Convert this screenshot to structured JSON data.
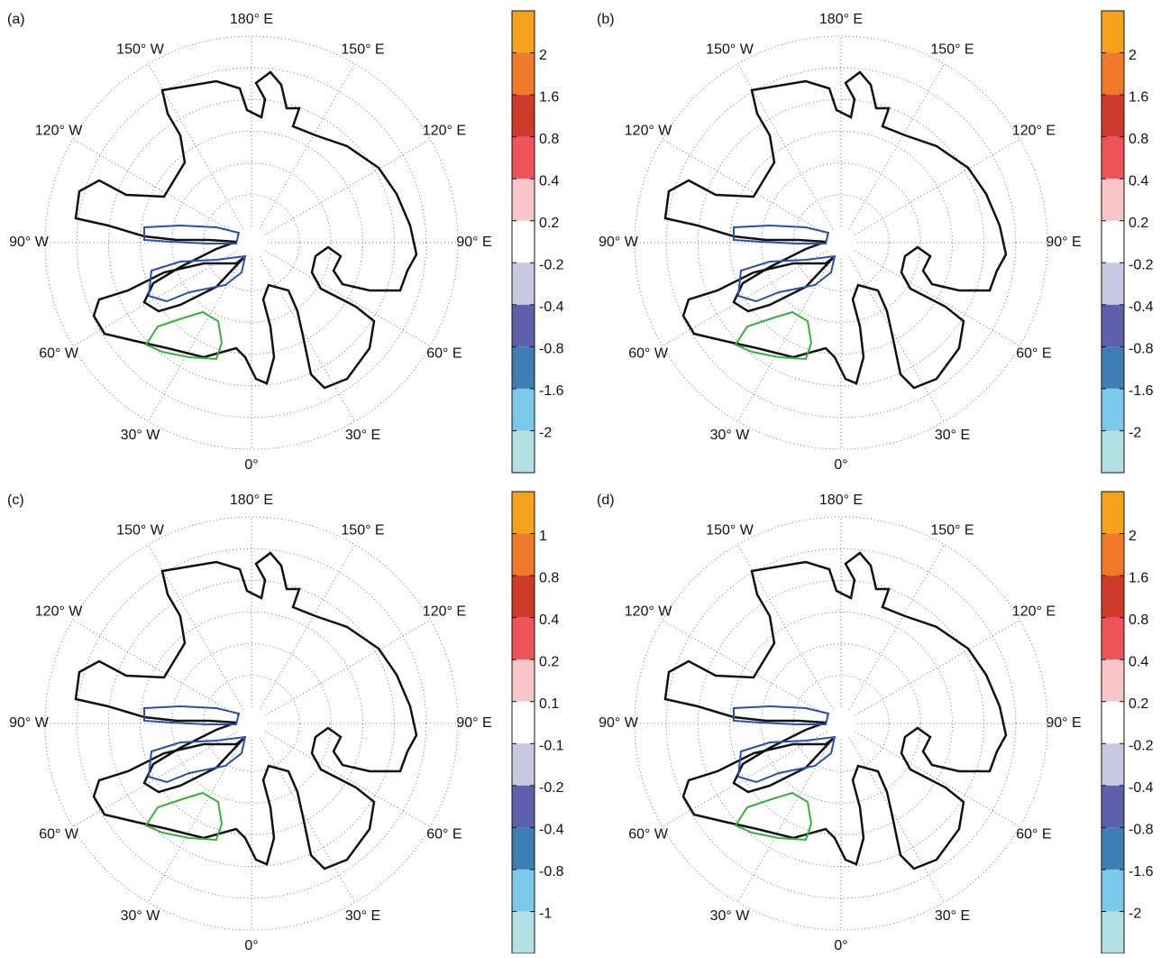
{
  "chart_data": [
    {
      "type": "polar-contour",
      "panel_label": "(a)",
      "thetaticks": [
        {
          "value": 180,
          "label": "180° E"
        },
        {
          "value": 150,
          "label": "150° E"
        },
        {
          "value": 120,
          "label": "120° E"
        },
        {
          "value": 90,
          "label": "90° E"
        },
        {
          "value": 60,
          "label": "60° E"
        },
        {
          "value": 30,
          "label": "30° E"
        },
        {
          "value": 0,
          "label": "0°"
        },
        {
          "value": -30,
          "label": "30° W"
        },
        {
          "value": -60,
          "label": "60° W"
        },
        {
          "value": -90,
          "label": "90° W"
        },
        {
          "value": -120,
          "label": "120° W"
        },
        {
          "value": -150,
          "label": "150° W"
        }
      ],
      "colorbar": {
        "colors": [
          "#f5a31c",
          "#ee7a2a",
          "#cf3a2b",
          "#ef545a",
          "#f8c5c9",
          "#ffffff",
          "#c9c8e3",
          "#5e5fad",
          "#3f7fb5",
          "#7ac8ea",
          "#b3e0e2"
        ],
        "ticks": [
          2,
          1.6,
          0.8,
          0.4,
          0.2,
          -0.2,
          -0.4,
          -0.8,
          -1.6,
          -2
        ]
      }
    },
    {
      "type": "polar-contour",
      "panel_label": "(b)",
      "thetaticks": [
        {
          "value": 180,
          "label": "180° E"
        },
        {
          "value": 150,
          "label": "150° E"
        },
        {
          "value": 120,
          "label": "120° E"
        },
        {
          "value": 90,
          "label": "90° E"
        },
        {
          "value": 60,
          "label": "60° E"
        },
        {
          "value": 30,
          "label": "30° E"
        },
        {
          "value": 0,
          "label": "0°"
        },
        {
          "value": -30,
          "label": "30° W"
        },
        {
          "value": -60,
          "label": "60° W"
        },
        {
          "value": -90,
          "label": "90° W"
        },
        {
          "value": -120,
          "label": "120° W"
        },
        {
          "value": -150,
          "label": "150° W"
        }
      ],
      "colorbar": {
        "colors": [
          "#f5a31c",
          "#ee7a2a",
          "#cf3a2b",
          "#ef545a",
          "#f8c5c9",
          "#ffffff",
          "#c9c8e3",
          "#5e5fad",
          "#3f7fb5",
          "#7ac8ea",
          "#b3e0e2"
        ],
        "ticks": [
          2,
          1.6,
          0.8,
          0.4,
          0.2,
          -0.2,
          -0.4,
          -0.8,
          -1.6,
          -2
        ]
      }
    },
    {
      "type": "polar-contour",
      "panel_label": "(c)",
      "thetaticks": [
        {
          "value": 180,
          "label": "180° E"
        },
        {
          "value": 150,
          "label": "150° E"
        },
        {
          "value": 120,
          "label": "120° E"
        },
        {
          "value": 90,
          "label": "90° E"
        },
        {
          "value": 60,
          "label": "60° E"
        },
        {
          "value": 30,
          "label": "30° E"
        },
        {
          "value": 0,
          "label": "0°"
        },
        {
          "value": -30,
          "label": "30° W"
        },
        {
          "value": -60,
          "label": "60° W"
        },
        {
          "value": -90,
          "label": "90° W"
        },
        {
          "value": -120,
          "label": "120° W"
        },
        {
          "value": -150,
          "label": "150° W"
        }
      ],
      "colorbar": {
        "colors": [
          "#f5a31c",
          "#ee7a2a",
          "#cf3a2b",
          "#ef545a",
          "#f8c5c9",
          "#ffffff",
          "#c9c8e3",
          "#5e5fad",
          "#3f7fb5",
          "#7ac8ea",
          "#b3e0e2"
        ],
        "ticks": [
          1,
          0.8,
          0.4,
          0.2,
          0.1,
          -0.1,
          -0.2,
          -0.4,
          -0.8,
          -1
        ]
      }
    },
    {
      "type": "polar-contour",
      "panel_label": "(d)",
      "thetaticks": [
        {
          "value": 180,
          "label": "180° E"
        },
        {
          "value": 150,
          "label": "150° E"
        },
        {
          "value": 120,
          "label": "120° E"
        },
        {
          "value": 90,
          "label": "90° E"
        },
        {
          "value": 60,
          "label": "60° E"
        },
        {
          "value": 30,
          "label": "30° E"
        },
        {
          "value": 0,
          "label": "0°"
        },
        {
          "value": -30,
          "label": "30° W"
        },
        {
          "value": -60,
          "label": "60° W"
        },
        {
          "value": -90,
          "label": "90° W"
        },
        {
          "value": -120,
          "label": "120° W"
        },
        {
          "value": -150,
          "label": "150° W"
        }
      ],
      "colorbar": {
        "colors": [
          "#f5a31c",
          "#ee7a2a",
          "#cf3a2b",
          "#ef545a",
          "#f8c5c9",
          "#ffffff",
          "#c9c8e3",
          "#5e5fad",
          "#3f7fb5",
          "#7ac8ea",
          "#b3e0e2"
        ],
        "ticks": [
          2,
          1.6,
          0.8,
          0.4,
          0.2,
          -0.2,
          -0.4,
          -0.8,
          -1.6,
          -2
        ]
      }
    }
  ]
}
